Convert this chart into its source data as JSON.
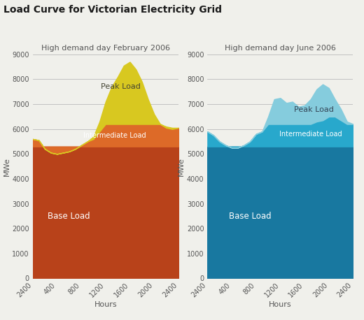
{
  "title": "Load Curve for Victorian Electricity Grid",
  "title_fontsize": 10,
  "background_color": "#f0f0eb",
  "feb_subtitle": "High demand day February 2006",
  "jun_subtitle": "High demand day June 2006",
  "xlabel": "Hours",
  "ylabel": "MWe",
  "ylim": [
    0,
    9000
  ],
  "yticks": [
    0,
    1000,
    2000,
    3000,
    4000,
    5000,
    6000,
    7000,
    8000,
    9000
  ],
  "x_labels": [
    "2400",
    "400",
    "800",
    "1200",
    "1600",
    "2000",
    "2400"
  ],
  "x_positions": [
    0,
    4,
    8,
    12,
    16,
    20,
    24
  ],
  "feb_hours": [
    0,
    1,
    2,
    3,
    4,
    5,
    6,
    7,
    8,
    9,
    10,
    11,
    12,
    13,
    14,
    15,
    16,
    17,
    18,
    19,
    20,
    21,
    22,
    23,
    24
  ],
  "feb_base": [
    5300,
    5300,
    5300,
    5300,
    5300,
    5300,
    5300,
    5300,
    5300,
    5300,
    5300,
    5300,
    5300,
    5300,
    5300,
    5300,
    5300,
    5300,
    5300,
    5300,
    5300,
    5300,
    5300,
    5300,
    5300
  ],
  "feb_inter_top": [
    5600,
    5550,
    5200,
    5050,
    5000,
    5050,
    5100,
    5200,
    5350,
    5500,
    5600,
    5900,
    6200,
    6200,
    6200,
    6200,
    6200,
    6200,
    6200,
    6200,
    6200,
    6200,
    6050,
    6000,
    6050
  ],
  "feb_total": [
    5600,
    5550,
    5200,
    5050,
    5000,
    5050,
    5100,
    5200,
    5350,
    5500,
    5700,
    6300,
    7100,
    7700,
    8100,
    8550,
    8700,
    8400,
    7900,
    7200,
    6600,
    6200,
    6100,
    6050,
    6050
  ],
  "jun_hours": [
    0,
    1,
    2,
    3,
    4,
    5,
    6,
    7,
    8,
    9,
    10,
    11,
    12,
    13,
    14,
    15,
    16,
    17,
    18,
    19,
    20,
    21,
    22,
    23,
    24
  ],
  "jun_base": [
    5300,
    5300,
    5300,
    5300,
    5300,
    5300,
    5300,
    5300,
    5300,
    5300,
    5300,
    5300,
    5300,
    5300,
    5300,
    5300,
    5300,
    5300,
    5300,
    5300,
    5300,
    5300,
    5300,
    5300,
    5300
  ],
  "jun_inter_top": [
    5900,
    5750,
    5500,
    5350,
    5250,
    5250,
    5350,
    5500,
    5800,
    5900,
    6200,
    6200,
    6200,
    6200,
    6200,
    6200,
    6200,
    6200,
    6300,
    6350,
    6500,
    6500,
    6350,
    6200,
    6200
  ],
  "jun_total": [
    5900,
    5750,
    5500,
    5350,
    5250,
    5250,
    5350,
    5500,
    5800,
    5900,
    6500,
    7200,
    7250,
    7050,
    7100,
    6900,
    6950,
    7200,
    7600,
    7800,
    7650,
    7200,
    6800,
    6300,
    6200
  ],
  "feb_base_color": "#b8421a",
  "feb_inter_color": "#dd6a28",
  "feb_peak_color": "#d8c820",
  "jun_base_color": "#1878a0",
  "jun_inter_color": "#28a8cc",
  "jun_peak_color": "#85ccdd",
  "grid_color": "#bbbbbb",
  "text_color": "#555555",
  "subtitle_fontsize": 8,
  "axis_label_fontsize": 8,
  "tick_fontsize": 7
}
